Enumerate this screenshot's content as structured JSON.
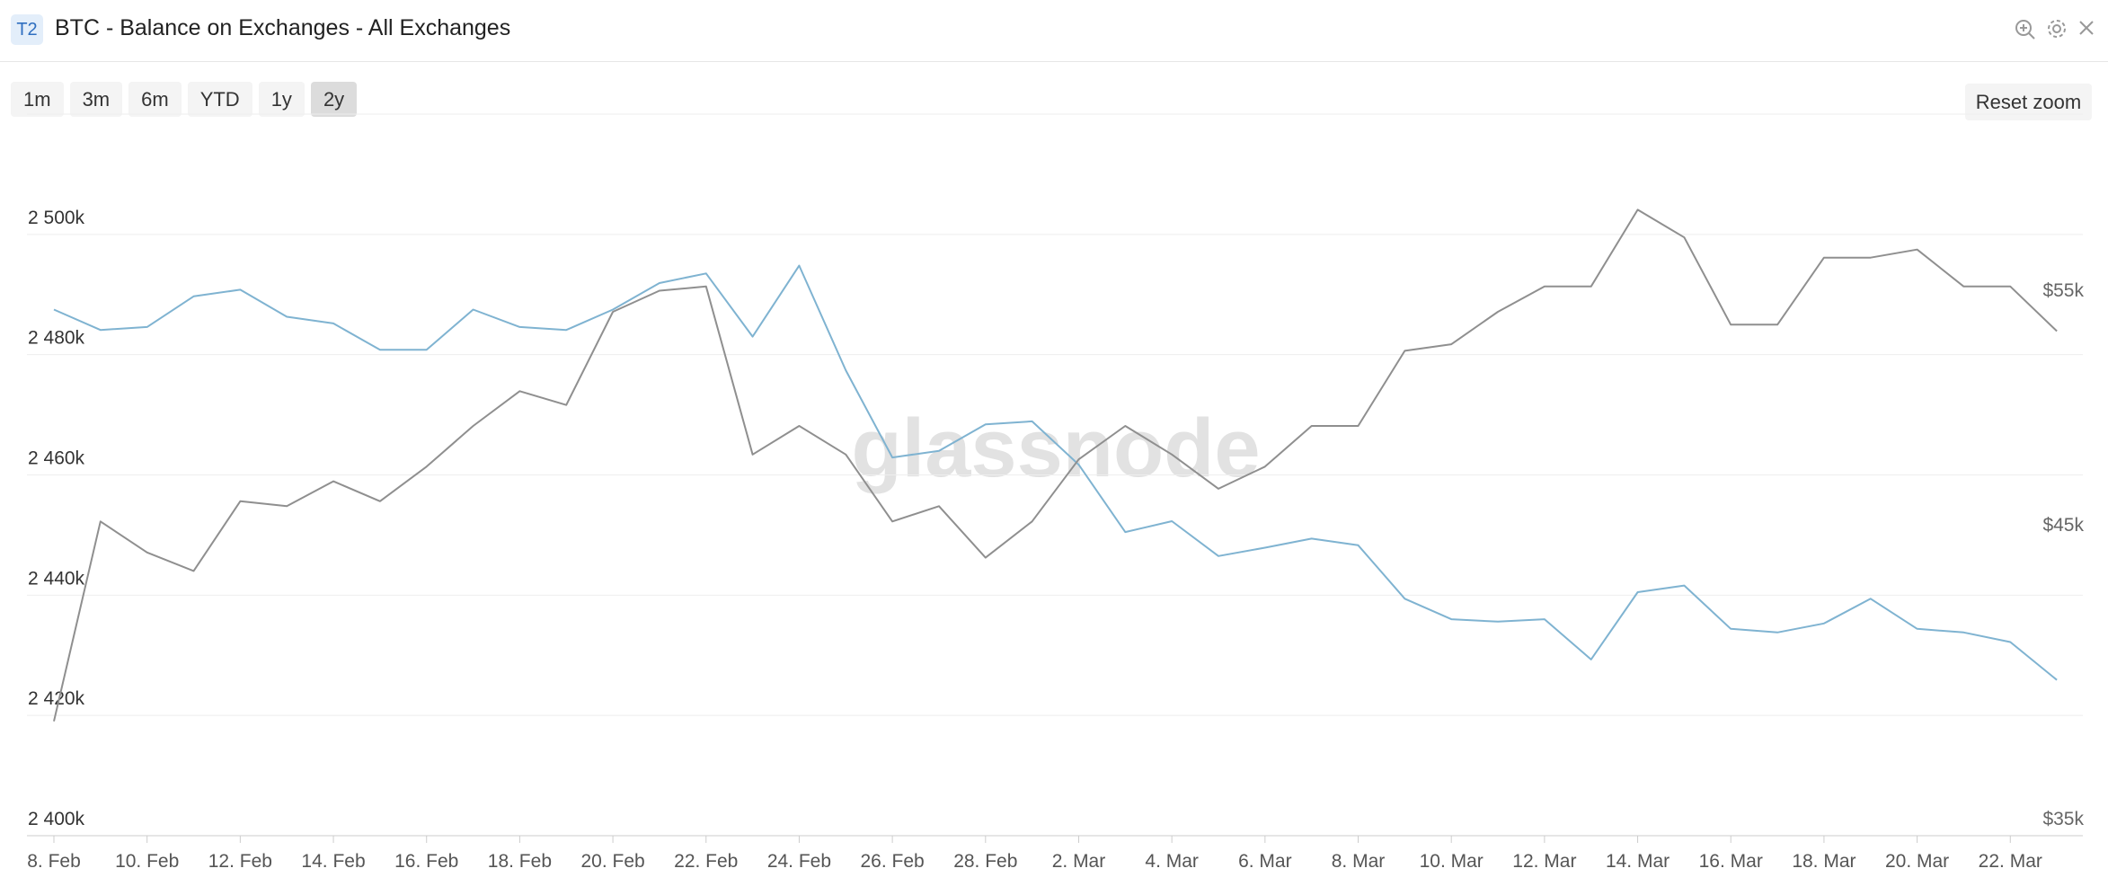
{
  "chart_data": {
    "type": "line",
    "title": "BTC - Balance on Exchanges - All Exchanges",
    "categories": [
      "8. Feb",
      null,
      "10. Feb",
      null,
      "12. Feb",
      null,
      "14. Feb",
      null,
      "16. Feb",
      null,
      "18. Feb",
      null,
      "20. Feb",
      null,
      "22. Feb",
      null,
      "24. Feb",
      null,
      "26. Feb",
      null,
      "28. Feb",
      null,
      "2. Mar",
      null,
      "4. Mar",
      null,
      "6. Mar",
      null,
      "8. Mar",
      null,
      "10. Mar",
      null,
      "12. Mar",
      null,
      "14. Mar",
      null,
      "16. Mar",
      null,
      "18. Mar",
      null,
      "20. Mar",
      null,
      "22. Mar",
      null
    ],
    "series": [
      {
        "color": "#7fb3d1",
        "values": [
          2487500,
          2484100,
          2484600,
          2489700,
          2490800,
          2486300,
          2485200,
          2480800,
          2480800,
          2487500,
          2484600,
          2484100,
          2487500,
          2491900,
          2493500,
          2483000,
          2494800,
          2477400,
          2462900,
          2464000,
          2468400,
          2468900,
          2461700,
          2450500,
          2452300,
          2446500,
          2447900,
          2449400,
          2448300,
          2439400,
          2436000,
          2435600,
          2436000,
          2429300,
          2440500,
          2441600,
          2434400,
          2433800,
          2435300,
          2439400,
          2434400,
          2433800,
          2432200,
          2425900
        ]
      },
      {
        "color": "#8f8f8f",
        "axis": "y2",
        "values": [
          38600,
          45800,
          44600,
          43900,
          46600,
          46400,
          47400,
          46600,
          48000,
          49700,
          51200,
          50600,
          54800,
          55800,
          56000,
          48500,
          49700,
          48500,
          45800,
          46400,
          44400,
          45800,
          48300,
          49700,
          48500,
          47100,
          48000,
          49700,
          49700,
          53000,
          53300,
          54800,
          56000,
          56000,
          59800,
          58400,
          54200,
          54200,
          57400,
          57400,
          57800,
          56000,
          56000,
          53900
        ]
      }
    ],
    "ylim": [
      2400000,
      2520000
    ],
    "yticks": [
      {
        "value": 2400000,
        "label": "2 400k"
      },
      {
        "value": 2420000,
        "label": "2 420k"
      },
      {
        "value": 2440000,
        "label": "2 440k"
      },
      {
        "value": 2460000,
        "label": "2 460k"
      },
      {
        "value": 2480000,
        "label": "2 480k"
      },
      {
        "value": 2500000,
        "label": "2 500k"
      }
    ],
    "y2lim": [
      35000,
      64900
    ],
    "y2log": true,
    "y2ticks": [
      {
        "value": 35000,
        "label": "$35k"
      },
      {
        "value": 45000,
        "label": "$45k"
      },
      {
        "value": 55000,
        "label": "$55k"
      }
    ],
    "grid": true
  },
  "ui": {
    "badge": "T2",
    "ranges": [
      "1m",
      "3m",
      "6m",
      "YTD",
      "1y",
      "2y"
    ],
    "active_range": "2y",
    "reset": "Reset zoom",
    "watermark": "glassnode"
  }
}
